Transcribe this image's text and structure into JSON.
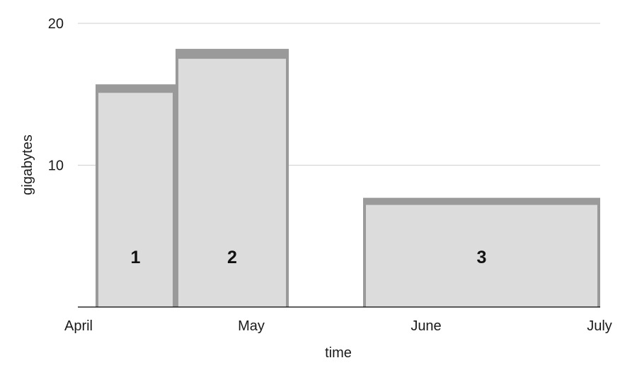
{
  "chart_data": {
    "type": "bar",
    "xlabel": "time",
    "ylabel": "gigabytes",
    "ylim": [
      0,
      20
    ],
    "y_ticks": [
      10,
      20
    ],
    "x_ticks": [
      "April",
      "May",
      "June",
      "July"
    ],
    "grid": true,
    "bars": [
      {
        "label": "1",
        "x_start": "April",
        "x_end": "mid-April",
        "value": 15.7,
        "inner_value": 15.1
      },
      {
        "label": "2",
        "x_start": "mid-April",
        "x_end": "May",
        "value": 18.2,
        "inner_value": 17.5
      },
      {
        "label": "3",
        "x_start": "June",
        "x_end": "July",
        "value": 7.7,
        "inner_value": 7.2
      }
    ],
    "colors": {
      "bar_fill": "#dcdcdc",
      "bar_outline": "#9a9a9a",
      "grid": "#cfcfcf",
      "axis": "#000000"
    }
  }
}
